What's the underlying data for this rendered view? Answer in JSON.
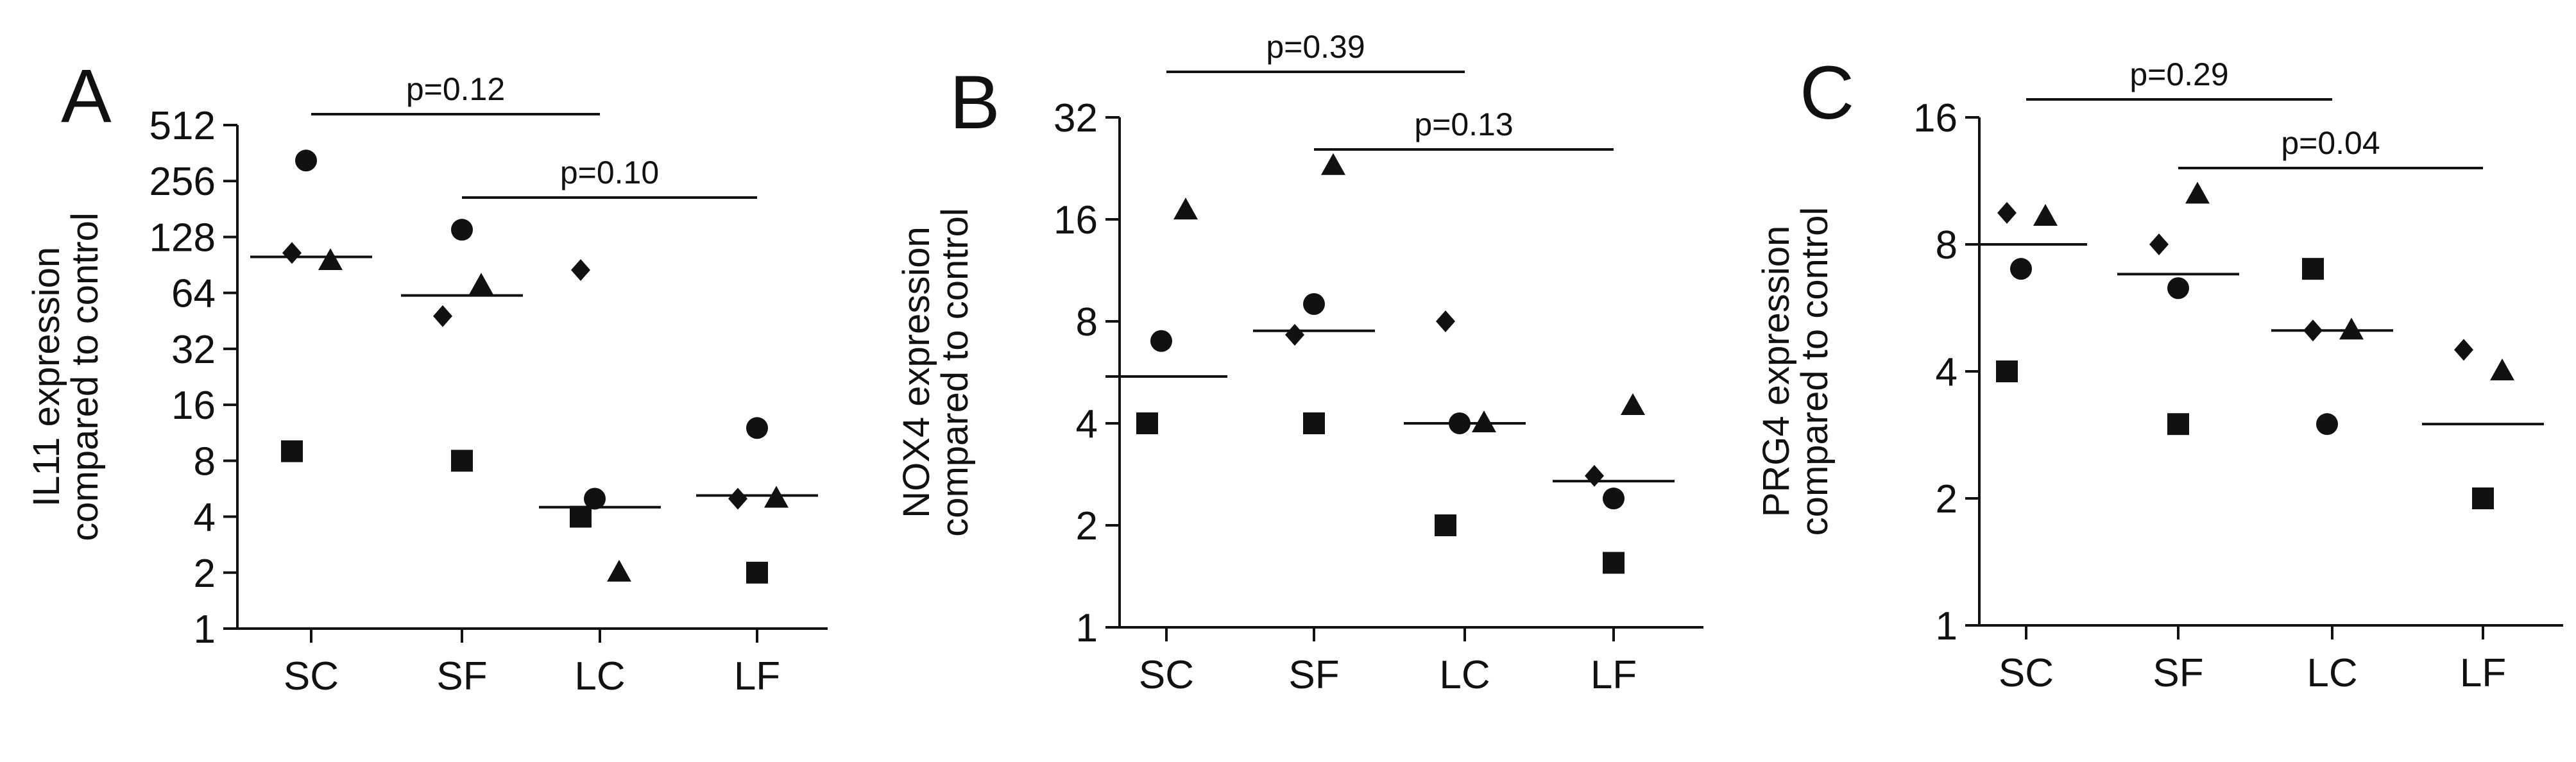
{
  "chart_data": [
    {
      "type": "scatter",
      "panel_letter": "A",
      "ylabel_lines": [
        "IL11 expression",
        "compared to control"
      ],
      "yscale": "log2",
      "ylim": [
        1,
        512
      ],
      "yticks": [
        1,
        2,
        4,
        8,
        16,
        32,
        64,
        128,
        256,
        512
      ],
      "yticks_text": [
        "1",
        "2",
        "4",
        "8",
        "16",
        "32",
        "64",
        "128",
        "256",
        "512"
      ],
      "categories": [
        "SC",
        "SF",
        "LC",
        "LF"
      ],
      "series": [
        {
          "name": "circle",
          "marker": "circle",
          "values": [
            330,
            140,
            5,
            12
          ]
        },
        {
          "name": "triangle",
          "marker": "triangle",
          "values": [
            95,
            70,
            2,
            5
          ]
        },
        {
          "name": "diamond",
          "marker": "diamond",
          "values": [
            105,
            48,
            85,
            5
          ]
        },
        {
          "name": "square",
          "marker": "square",
          "values": [
            9,
            8,
            4,
            2
          ]
        }
      ],
      "means": [
        100,
        62,
        4.5,
        5.2
      ],
      "comparisons": [
        {
          "from": "SC",
          "to": "LC",
          "label": "p=0.12"
        },
        {
          "from": "SF",
          "to": "LF",
          "label": "p=0.10"
        }
      ]
    },
    {
      "type": "scatter",
      "panel_letter": "B",
      "ylabel_lines": [
        "NOX4 expression",
        "compared to control"
      ],
      "yscale": "log2",
      "ylim": [
        1,
        32
      ],
      "yticks": [
        1,
        2,
        4,
        8,
        16,
        32
      ],
      "yticks_text": [
        "1",
        "2",
        "4",
        "8",
        "16",
        "32"
      ],
      "categories": [
        "SC",
        "SF",
        "LC",
        "LF"
      ],
      "series": [
        {
          "name": "circle",
          "marker": "circle",
          "values": [
            7,
            9,
            4,
            2.4
          ]
        },
        {
          "name": "triangle",
          "marker": "triangle",
          "values": [
            17,
            23,
            4,
            4.5
          ]
        },
        {
          "name": "diamond",
          "marker": "diamond",
          "values": [
            4,
            7.3,
            8,
            2.8
          ]
        },
        {
          "name": "square",
          "marker": "square",
          "values": [
            4,
            4,
            2,
            1.55
          ]
        }
      ],
      "means": [
        5.5,
        7.5,
        4,
        2.7
      ],
      "comparisons": [
        {
          "from": "SC",
          "to": "LC",
          "label": "p=0.39"
        },
        {
          "from": "SF",
          "to": "LF",
          "label": "p=0.13"
        }
      ]
    },
    {
      "type": "scatter",
      "panel_letter": "C",
      "ylabel_lines": [
        "PRG4 expression",
        "compared to control"
      ],
      "yscale": "log2",
      "ylim": [
        1,
        16
      ],
      "yticks": [
        1,
        2,
        4,
        8,
        16
      ],
      "yticks_text": [
        "1",
        "2",
        "4",
        "8",
        "16"
      ],
      "categories": [
        "SC",
        "SF",
        "LC",
        "LF"
      ],
      "series": [
        {
          "name": "circle",
          "marker": "circle",
          "values": [
            7,
            6.3,
            3,
            2
          ]
        },
        {
          "name": "triangle",
          "marker": "triangle",
          "values": [
            9.3,
            10.5,
            5,
            4
          ]
        },
        {
          "name": "diamond",
          "marker": "diamond",
          "values": [
            9.5,
            8,
            5,
            4.5
          ]
        },
        {
          "name": "square",
          "marker": "square",
          "values": [
            4,
            3,
            7,
            2
          ]
        }
      ],
      "means": [
        8,
        6.8,
        5,
        3
      ],
      "comparisons": [
        {
          "from": "SC",
          "to": "LC",
          "label": "p=0.29"
        },
        {
          "from": "SF",
          "to": "LF",
          "label": "p=0.04"
        }
      ]
    }
  ]
}
